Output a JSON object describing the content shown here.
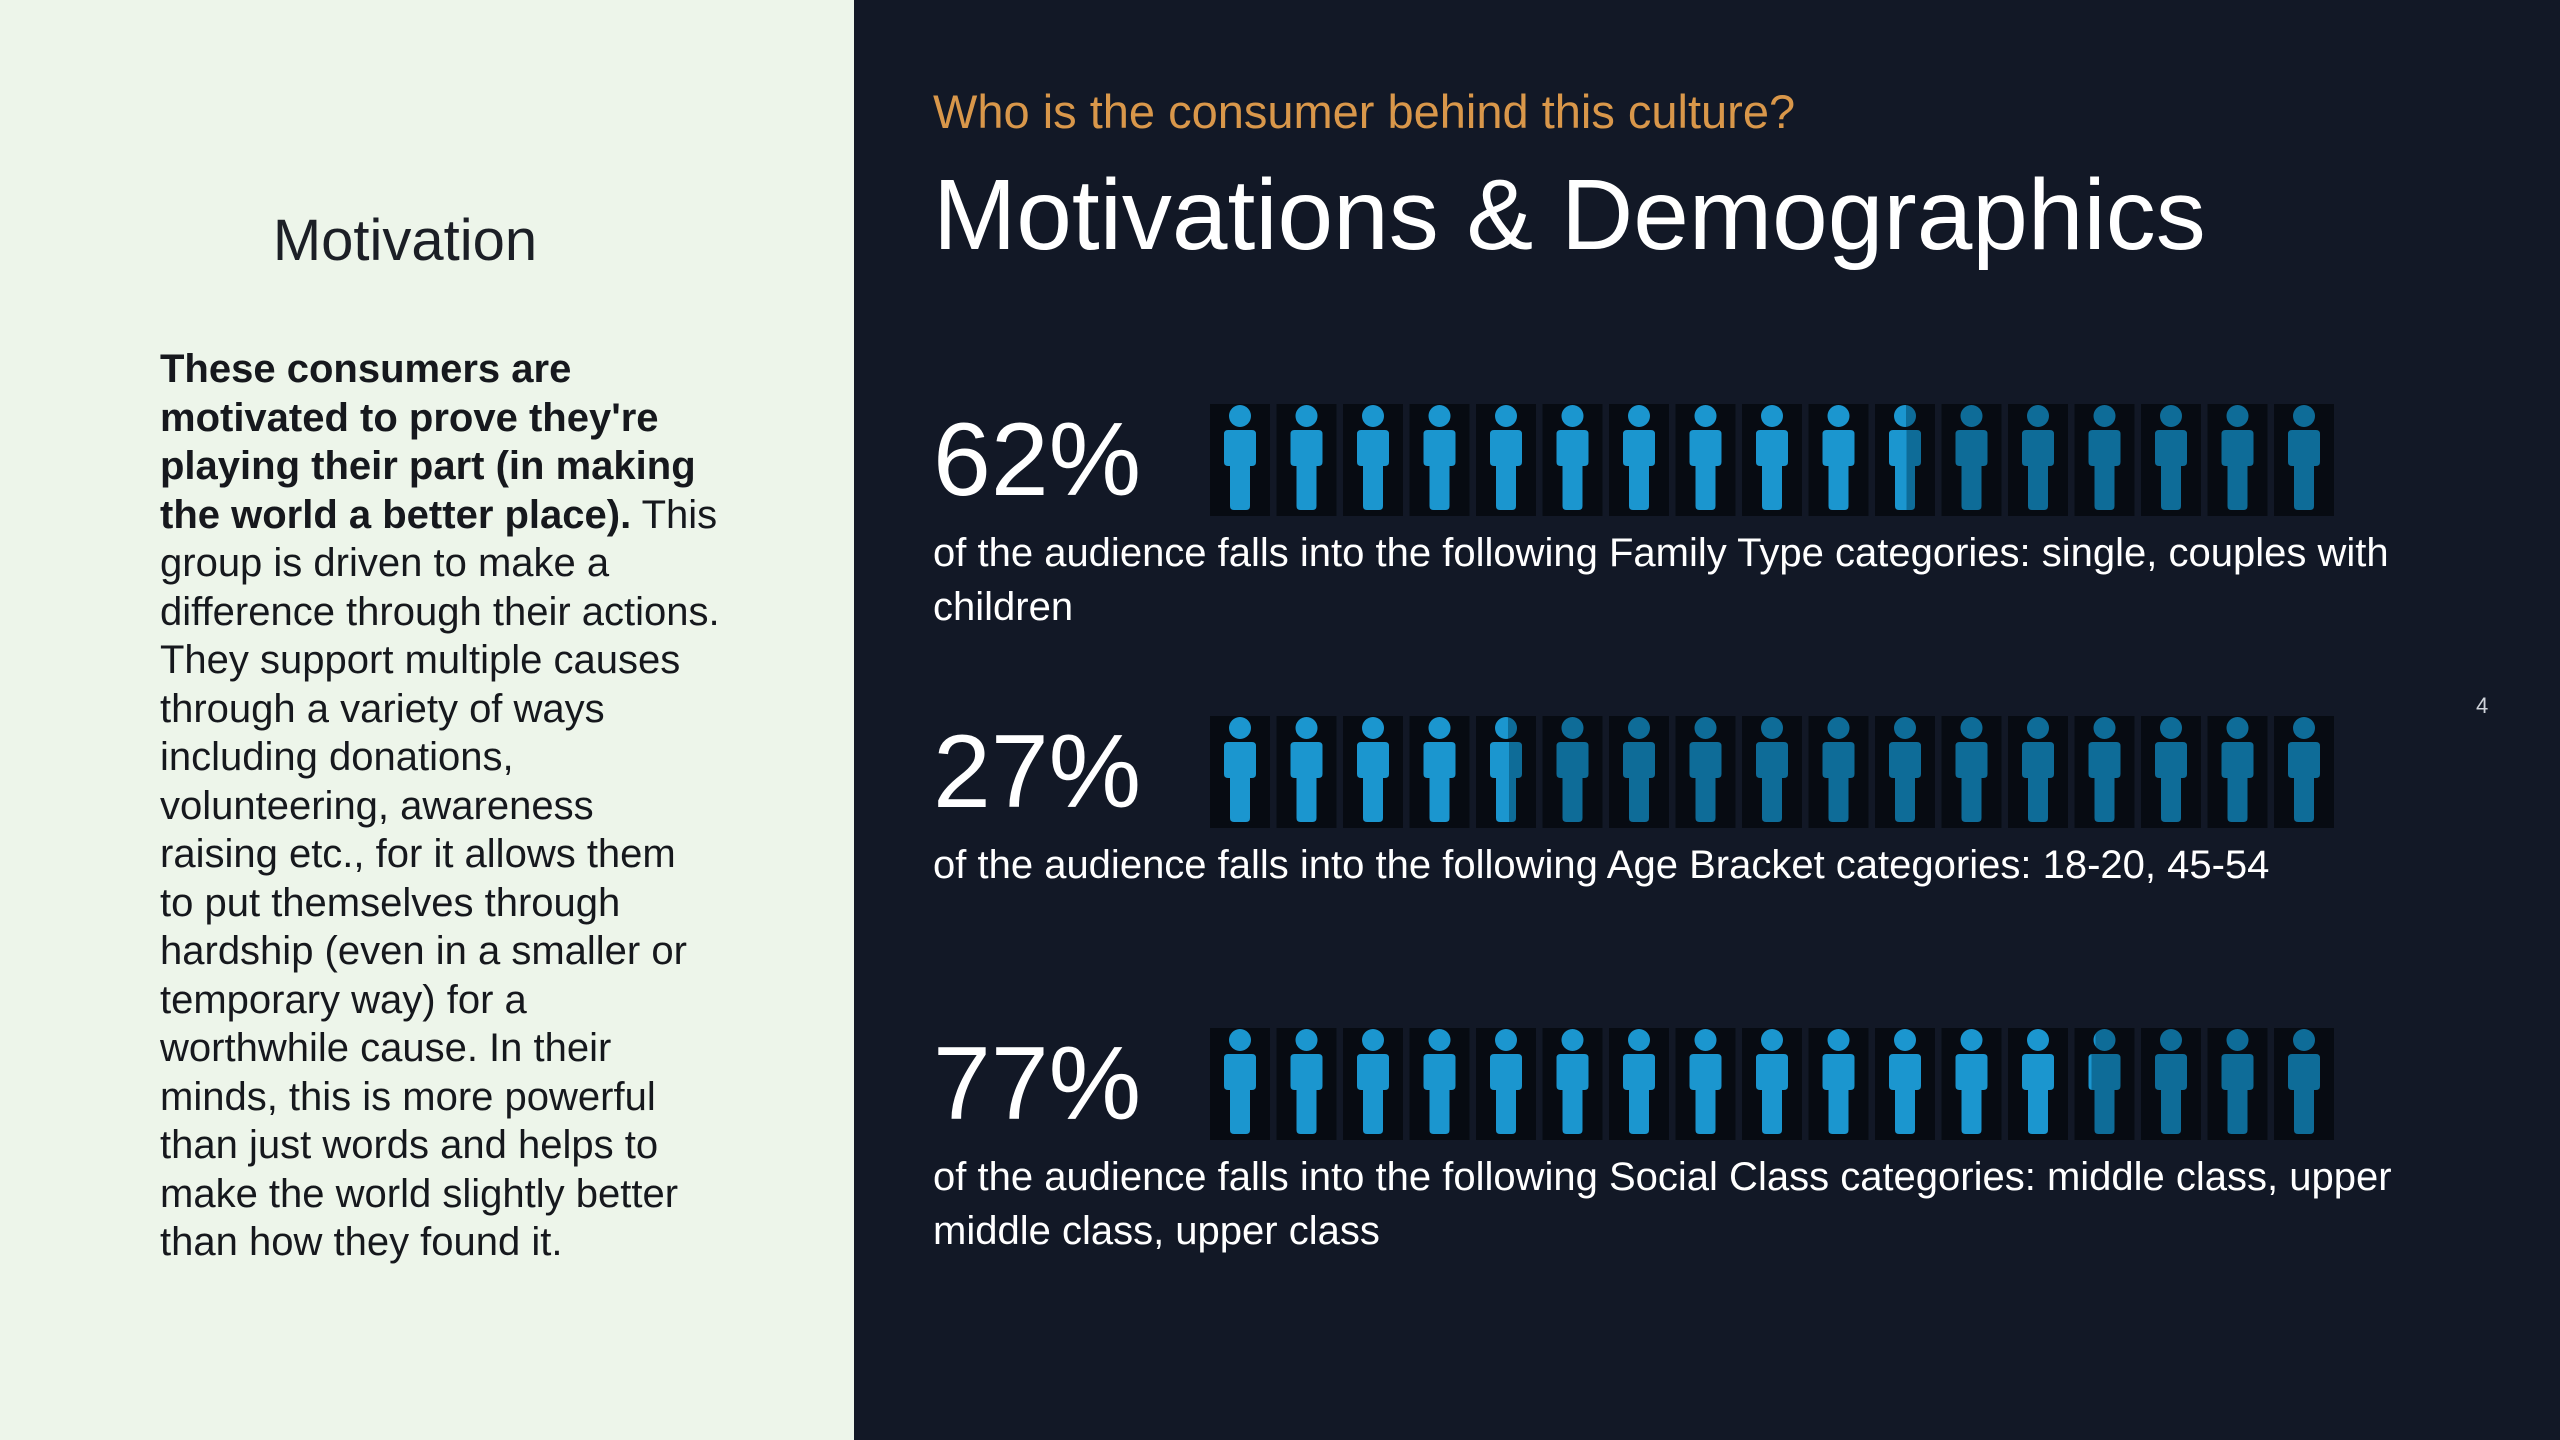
{
  "left": {
    "heading": "Motivation",
    "body_bold": "These consumers are motivated to prove they're playing their part (in making the world a better place).",
    "body_text": " This group is driven to make a difference through their actions. They support multiple causes through a variety of ways including donations, volunteering, awareness raising etc., for it allows them to put themselves through hardship (even in a smaller or temporary way) for a worthwhile cause. In their minds, this is more powerful than just words and helps to make the world slightly better than how they found it."
  },
  "header": {
    "subtitle": "Who is the consumer behind this culture?",
    "title": "Motivations & Demographics"
  },
  "stats": [
    {
      "percent_label": "62%",
      "caption": "of the audience falls into the following Family Type categories: single, couples with children"
    },
    {
      "percent_label": "27%",
      "caption": "of the audience falls into the following Age Bracket categories: 18-20, 45-54"
    },
    {
      "percent_label": "77%",
      "caption": "of the audience falls into the following Social Class categories: middle class, upper middle class, upper class"
    }
  ],
  "chart_data": {
    "type": "pictograph",
    "icon": "person-icon",
    "icons_per_row": 17,
    "values_percent": [
      62,
      27,
      77
    ],
    "colors": {
      "filled": "#1b96cf",
      "unfilled": "#0e6c98",
      "tile": "#070b12"
    }
  },
  "page_number": "4"
}
